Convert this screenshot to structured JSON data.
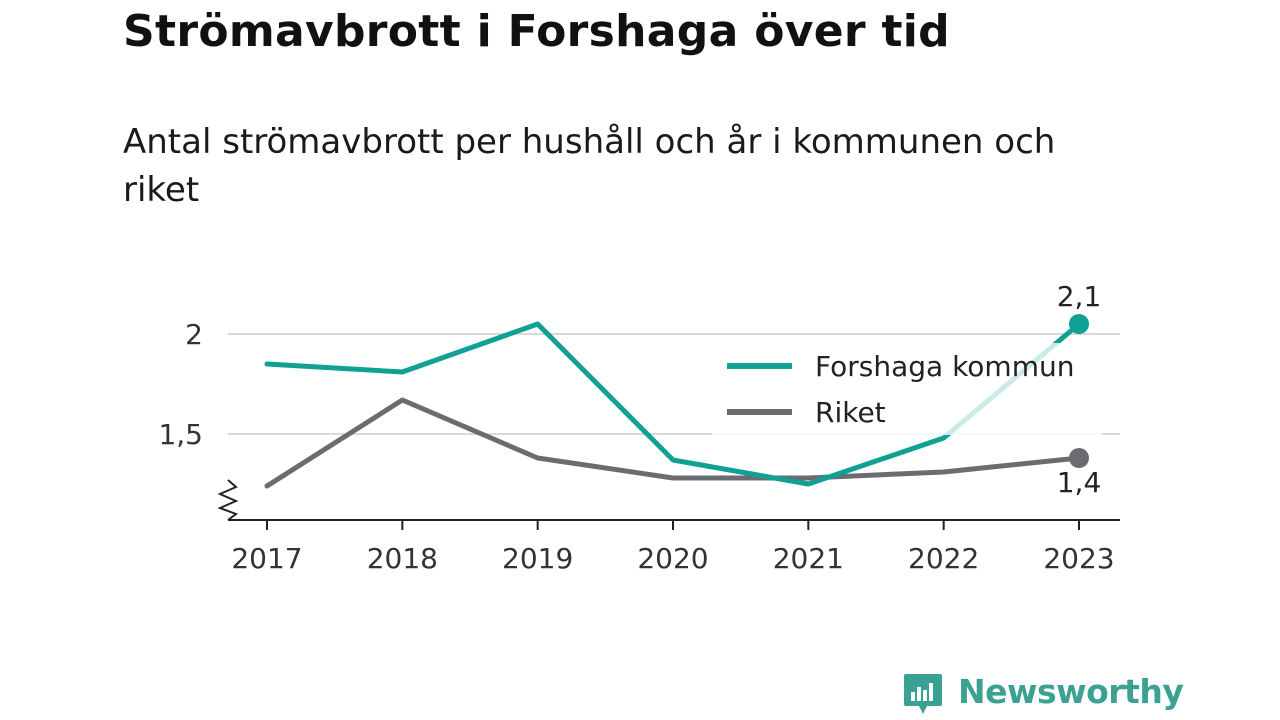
{
  "title": "Strömavbrott i Forshaga över tid",
  "subtitle": "Antal strömavbrott per hushåll och år i kommunen och riket",
  "brand": {
    "name": "Newsworthy",
    "icon": "newsworthy-logo-icon",
    "color": "#3aa193"
  },
  "chart_data": {
    "type": "line",
    "categories": [
      "2017",
      "2018",
      "2019",
      "2020",
      "2021",
      "2022",
      "2023"
    ],
    "series": [
      {
        "name": "Forshaga kommun",
        "color": "#10a094",
        "values": [
          1.85,
          1.81,
          2.05,
          1.37,
          1.25,
          1.48,
          2.05
        ],
        "end_label": "2,1"
      },
      {
        "name": "Riket",
        "color": "#6c6b72",
        "values": [
          1.24,
          1.67,
          1.38,
          1.28,
          1.28,
          1.31,
          1.38
        ],
        "end_label": "1,4"
      }
    ],
    "y_ticks": [
      {
        "value": 1.5,
        "label": "1,5"
      },
      {
        "value": 2,
        "label": "2"
      }
    ],
    "ylim": [
      1.07,
      2.0
    ],
    "y_axis_broken": true,
    "grid": true,
    "legend_position": "top-right",
    "xlabel": "",
    "ylabel": ""
  }
}
